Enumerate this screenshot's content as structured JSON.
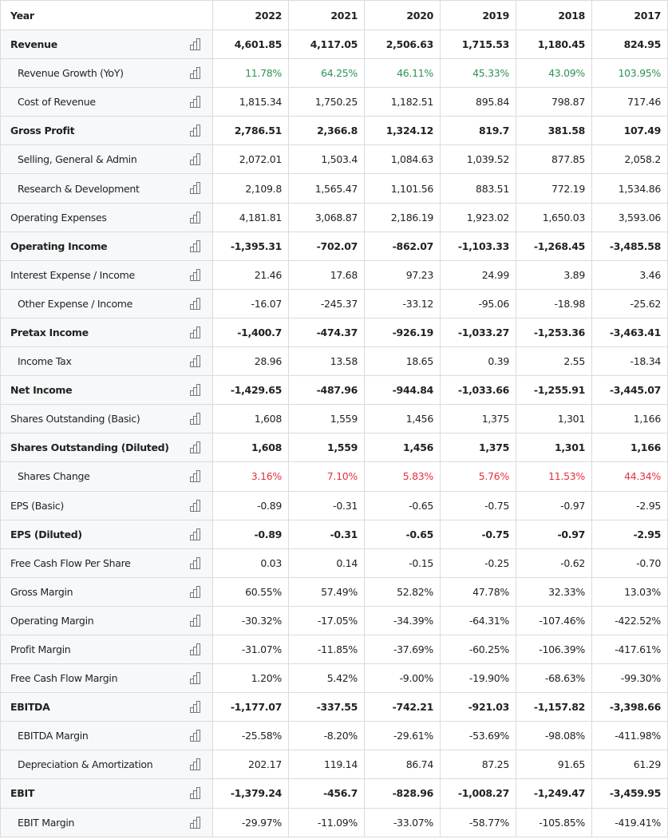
{
  "header": {
    "first": "Year",
    "years": [
      "2022",
      "2021",
      "2020",
      "2019",
      "2018",
      "2017"
    ]
  },
  "colors": {
    "positive": "#2e9254",
    "negative": "#e5303f",
    "label_bg": "#f7f8fa",
    "border": "#d8dbe0"
  },
  "row_icon": "bar-chart-icon",
  "rows": [
    {
      "label": "Revenue",
      "bold": true,
      "indent": false,
      "color": "",
      "values": [
        "4,601.85",
        "4,117.05",
        "2,506.63",
        "1,715.53",
        "1,180.45",
        "824.95"
      ]
    },
    {
      "label": "Revenue Growth (YoY)",
      "bold": false,
      "indent": true,
      "color": "green",
      "values": [
        "11.78%",
        "64.25%",
        "46.11%",
        "45.33%",
        "43.09%",
        "103.95%"
      ]
    },
    {
      "label": "Cost of Revenue",
      "bold": false,
      "indent": true,
      "color": "",
      "values": [
        "1,815.34",
        "1,750.25",
        "1,182.51",
        "895.84",
        "798.87",
        "717.46"
      ]
    },
    {
      "label": "Gross Profit",
      "bold": true,
      "indent": false,
      "color": "",
      "values": [
        "2,786.51",
        "2,366.8",
        "1,324.12",
        "819.7",
        "381.58",
        "107.49"
      ]
    },
    {
      "label": "Selling, General & Admin",
      "bold": false,
      "indent": true,
      "color": "",
      "values": [
        "2,072.01",
        "1,503.4",
        "1,084.63",
        "1,039.52",
        "877.85",
        "2,058.2"
      ]
    },
    {
      "label": "Research & Development",
      "bold": false,
      "indent": true,
      "color": "",
      "values": [
        "2,109.8",
        "1,565.47",
        "1,101.56",
        "883.51",
        "772.19",
        "1,534.86"
      ]
    },
    {
      "label": "Operating Expenses",
      "bold": false,
      "indent": false,
      "color": "",
      "values": [
        "4,181.81",
        "3,068.87",
        "2,186.19",
        "1,923.02",
        "1,650.03",
        "3,593.06"
      ]
    },
    {
      "label": "Operating Income",
      "bold": true,
      "indent": false,
      "color": "",
      "values": [
        "-1,395.31",
        "-702.07",
        "-862.07",
        "-1,103.33",
        "-1,268.45",
        "-3,485.58"
      ]
    },
    {
      "label": "Interest Expense / Income",
      "bold": false,
      "indent": false,
      "color": "",
      "values": [
        "21.46",
        "17.68",
        "97.23",
        "24.99",
        "3.89",
        "3.46"
      ]
    },
    {
      "label": "Other Expense / Income",
      "bold": false,
      "indent": true,
      "color": "",
      "values": [
        "-16.07",
        "-245.37",
        "-33.12",
        "-95.06",
        "-18.98",
        "-25.62"
      ]
    },
    {
      "label": "Pretax Income",
      "bold": true,
      "indent": false,
      "color": "",
      "values": [
        "-1,400.7",
        "-474.37",
        "-926.19",
        "-1,033.27",
        "-1,253.36",
        "-3,463.41"
      ]
    },
    {
      "label": "Income Tax",
      "bold": false,
      "indent": true,
      "color": "",
      "values": [
        "28.96",
        "13.58",
        "18.65",
        "0.39",
        "2.55",
        "-18.34"
      ]
    },
    {
      "label": "Net Income",
      "bold": true,
      "indent": false,
      "color": "",
      "values": [
        "-1,429.65",
        "-487.96",
        "-944.84",
        "-1,033.66",
        "-1,255.91",
        "-3,445.07"
      ]
    },
    {
      "label": "Shares Outstanding (Basic)",
      "bold": false,
      "indent": false,
      "color": "",
      "values": [
        "1,608",
        "1,559",
        "1,456",
        "1,375",
        "1,301",
        "1,166"
      ]
    },
    {
      "label": "Shares Outstanding (Diluted)",
      "bold": true,
      "indent": false,
      "color": "",
      "values": [
        "1,608",
        "1,559",
        "1,456",
        "1,375",
        "1,301",
        "1,166"
      ]
    },
    {
      "label": "Shares Change",
      "bold": false,
      "indent": true,
      "color": "red",
      "values": [
        "3.16%",
        "7.10%",
        "5.83%",
        "5.76%",
        "11.53%",
        "44.34%"
      ]
    },
    {
      "label": "EPS (Basic)",
      "bold": false,
      "indent": false,
      "color": "",
      "values": [
        "-0.89",
        "-0.31",
        "-0.65",
        "-0.75",
        "-0.97",
        "-2.95"
      ]
    },
    {
      "label": "EPS (Diluted)",
      "bold": true,
      "indent": false,
      "color": "",
      "values": [
        "-0.89",
        "-0.31",
        "-0.65",
        "-0.75",
        "-0.97",
        "-2.95"
      ]
    },
    {
      "label": "Free Cash Flow Per Share",
      "bold": false,
      "indent": false,
      "color": "",
      "values": [
        "0.03",
        "0.14",
        "-0.15",
        "-0.25",
        "-0.62",
        "-0.70"
      ]
    },
    {
      "label": "Gross Margin",
      "bold": false,
      "indent": false,
      "color": "",
      "values": [
        "60.55%",
        "57.49%",
        "52.82%",
        "47.78%",
        "32.33%",
        "13.03%"
      ]
    },
    {
      "label": "Operating Margin",
      "bold": false,
      "indent": false,
      "color": "",
      "values": [
        "-30.32%",
        "-17.05%",
        "-34.39%",
        "-64.31%",
        "-107.46%",
        "-422.52%"
      ]
    },
    {
      "label": "Profit Margin",
      "bold": false,
      "indent": false,
      "color": "",
      "values": [
        "-31.07%",
        "-11.85%",
        "-37.69%",
        "-60.25%",
        "-106.39%",
        "-417.61%"
      ]
    },
    {
      "label": "Free Cash Flow Margin",
      "bold": false,
      "indent": false,
      "color": "",
      "values": [
        "1.20%",
        "5.42%",
        "-9.00%",
        "-19.90%",
        "-68.63%",
        "-99.30%"
      ]
    },
    {
      "label": "EBITDA",
      "bold": true,
      "indent": false,
      "color": "",
      "values": [
        "-1,177.07",
        "-337.55",
        "-742.21",
        "-921.03",
        "-1,157.82",
        "-3,398.66"
      ]
    },
    {
      "label": "EBITDA Margin",
      "bold": false,
      "indent": true,
      "color": "",
      "values": [
        "-25.58%",
        "-8.20%",
        "-29.61%",
        "-53.69%",
        "-98.08%",
        "-411.98%"
      ]
    },
    {
      "label": "Depreciation & Amortization",
      "bold": false,
      "indent": true,
      "color": "",
      "values": [
        "202.17",
        "119.14",
        "86.74",
        "87.25",
        "91.65",
        "61.29"
      ]
    },
    {
      "label": "EBIT",
      "bold": true,
      "indent": false,
      "color": "",
      "values": [
        "-1,379.24",
        "-456.7",
        "-828.96",
        "-1,008.27",
        "-1,249.47",
        "-3,459.95"
      ]
    },
    {
      "label": "EBIT Margin",
      "bold": false,
      "indent": true,
      "color": "",
      "values": [
        "-29.97%",
        "-11.09%",
        "-33.07%",
        "-58.77%",
        "-105.85%",
        "-419.41%"
      ]
    }
  ]
}
